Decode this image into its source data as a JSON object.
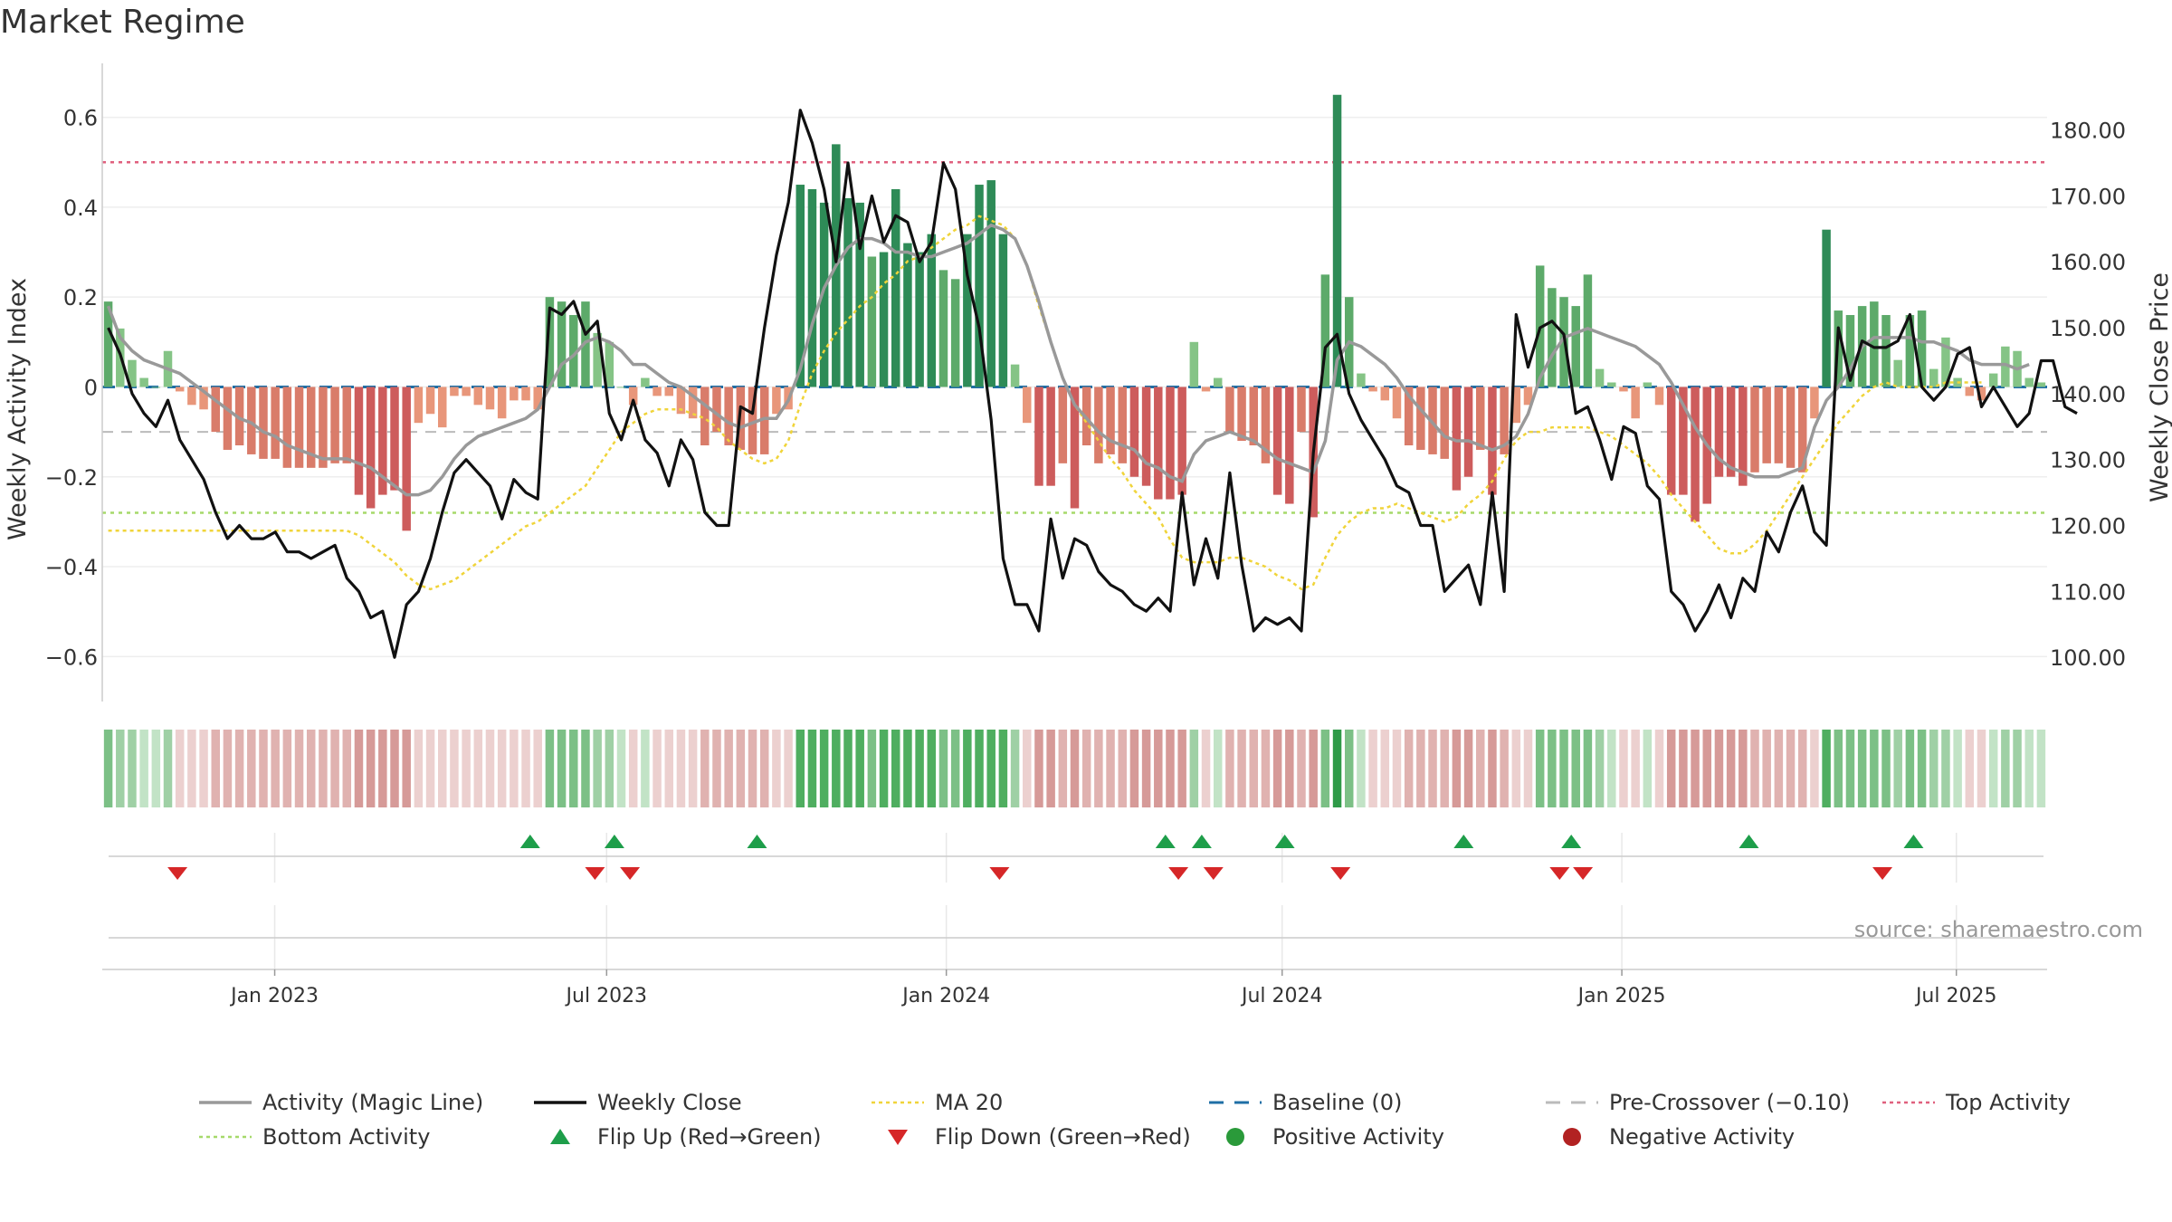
{
  "chart_data": {
    "type": "bar",
    "title": "Market Regime",
    "ylabel": "Weekly Activity Index",
    "y2label": "Weekly Close Price",
    "ylim": [
      -0.7,
      0.72
    ],
    "y2lim": [
      93.3,
      190.1
    ],
    "yticks": [
      0.6,
      0.4,
      0.2,
      0,
      -0.2,
      -0.4,
      -0.6
    ],
    "ytick_labels": [
      "0.6",
      "0.4",
      "0.2",
      "0",
      "−0.2",
      "−0.4",
      "−0.6"
    ],
    "y2ticks": [
      180,
      170,
      160,
      150,
      140,
      130,
      120,
      110,
      100
    ],
    "y2tick_labels": [
      "180.00",
      "170.00",
      "160.00",
      "150.00",
      "140.00",
      "130.00",
      "120.00",
      "110.00",
      "100.00"
    ],
    "x_range_weeks": [
      0,
      150
    ],
    "xticks": [
      {
        "label": "Jan 2023",
        "week": 13.3
      },
      {
        "label": "Jul 2023",
        "week": 38.9
      },
      {
        "label": "Jan 2024",
        "week": 65.1
      },
      {
        "label": "Jul 2024",
        "week": 91.0
      },
      {
        "label": "Jan 2025",
        "week": 117.2
      },
      {
        "label": "Jul 2025",
        "week": 143.0
      }
    ],
    "activity": [
      0.19,
      0.13,
      0.06,
      0.02,
      0.0,
      0.08,
      -0.01,
      -0.04,
      -0.05,
      -0.1,
      -0.14,
      -0.13,
      -0.15,
      -0.16,
      -0.16,
      -0.18,
      -0.18,
      -0.18,
      -0.18,
      -0.17,
      -0.17,
      -0.24,
      -0.27,
      -0.24,
      -0.23,
      -0.32,
      -0.08,
      -0.06,
      -0.09,
      -0.02,
      -0.02,
      -0.04,
      -0.05,
      -0.07,
      -0.03,
      -0.03,
      -0.05,
      0.2,
      0.19,
      0.16,
      0.19,
      0.12,
      0.1,
      0.0,
      -0.04,
      0.02,
      -0.02,
      -0.02,
      -0.06,
      -0.07,
      -0.13,
      -0.1,
      -0.13,
      -0.14,
      -0.15,
      -0.15,
      -0.06,
      -0.05,
      0.45,
      0.44,
      0.41,
      0.54,
      0.42,
      0.41,
      0.29,
      0.3,
      0.44,
      0.32,
      0.3,
      0.34,
      0.26,
      0.24,
      0.34,
      0.45,
      0.46,
      0.34,
      0.05,
      -0.08,
      -0.22,
      -0.22,
      -0.17,
      -0.27,
      -0.13,
      -0.17,
      -0.15,
      -0.17,
      -0.2,
      -0.22,
      -0.25,
      -0.25,
      -0.24,
      0.1,
      -0.01,
      0.02,
      -0.1,
      -0.12,
      -0.13,
      -0.17,
      -0.24,
      -0.26,
      -0.1,
      -0.29,
      0.25,
      0.65,
      0.2,
      0.03,
      -0.01,
      -0.03,
      -0.07,
      -0.13,
      -0.14,
      -0.15,
      -0.16,
      -0.23,
      -0.2,
      -0.14,
      -0.24,
      -0.15,
      -0.08,
      -0.04,
      0.27,
      0.22,
      0.2,
      0.18,
      0.25,
      0.04,
      0.01,
      -0.01,
      -0.07,
      0.01,
      -0.04,
      -0.24,
      -0.24,
      -0.3,
      -0.26,
      -0.2,
      -0.2,
      -0.22,
      -0.19,
      -0.17,
      -0.17,
      -0.18,
      -0.19,
      -0.07,
      0.35,
      0.17,
      0.16,
      0.18,
      0.19,
      0.16,
      0.06,
      0.16,
      0.17,
      0.04,
      0.11,
      0.02,
      -0.02,
      -0.03,
      0.03,
      0.09,
      0.08,
      0.02,
      0.01
    ],
    "magic_line": [
      0.18,
      0.11,
      0.08,
      0.06,
      0.05,
      0.04,
      0.03,
      0.01,
      -0.01,
      -0.03,
      -0.05,
      -0.07,
      -0.08,
      -0.1,
      -0.11,
      -0.13,
      -0.14,
      -0.15,
      -0.16,
      -0.16,
      -0.16,
      -0.17,
      -0.18,
      -0.2,
      -0.22,
      -0.24,
      -0.24,
      -0.23,
      -0.2,
      -0.16,
      -0.13,
      -0.11,
      -0.1,
      -0.09,
      -0.08,
      -0.07,
      -0.05,
      0.0,
      0.05,
      0.07,
      0.1,
      0.11,
      0.1,
      0.08,
      0.05,
      0.05,
      0.03,
      0.01,
      0.0,
      -0.02,
      -0.04,
      -0.06,
      -0.08,
      -0.09,
      -0.08,
      -0.07,
      -0.07,
      -0.03,
      0.04,
      0.14,
      0.22,
      0.27,
      0.31,
      0.33,
      0.33,
      0.32,
      0.3,
      0.3,
      0.29,
      0.29,
      0.3,
      0.31,
      0.32,
      0.34,
      0.36,
      0.35,
      0.33,
      0.27,
      0.19,
      0.1,
      0.02,
      -0.04,
      -0.07,
      -0.1,
      -0.12,
      -0.13,
      -0.14,
      -0.17,
      -0.18,
      -0.2,
      -0.21,
      -0.15,
      -0.12,
      -0.11,
      -0.1,
      -0.11,
      -0.12,
      -0.14,
      -0.16,
      -0.17,
      -0.18,
      -0.19,
      -0.12,
      0.06,
      0.1,
      0.09,
      0.07,
      0.05,
      0.02,
      -0.02,
      -0.05,
      -0.08,
      -0.11,
      -0.12,
      -0.12,
      -0.13,
      -0.14,
      -0.13,
      -0.11,
      -0.06,
      0.02,
      0.07,
      0.11,
      0.12,
      0.13,
      0.12,
      0.11,
      0.1,
      0.09,
      0.07,
      0.05,
      0.01,
      -0.04,
      -0.09,
      -0.13,
      -0.16,
      -0.18,
      -0.19,
      -0.2,
      -0.2,
      -0.2,
      -0.19,
      -0.18,
      -0.09,
      -0.03,
      0.0,
      0.04,
      0.09,
      0.11,
      0.11,
      0.11,
      0.11,
      0.1,
      0.1,
      0.09,
      0.08,
      0.06,
      0.05,
      0.05,
      0.05,
      0.04,
      0.05
    ],
    "weekly_close": [
      150,
      146,
      140,
      137,
      135,
      139,
      133,
      130,
      127,
      122,
      118,
      120,
      118,
      118,
      119,
      116,
      116,
      115,
      116,
      117,
      112,
      110,
      106,
      107,
      100,
      108,
      110,
      115,
      122,
      128,
      130,
      128,
      126,
      121,
      127,
      125,
      124,
      153,
      152,
      154,
      149,
      151,
      137,
      133,
      139,
      133,
      131,
      126,
      133,
      130,
      122,
      120,
      120,
      138,
      137,
      150,
      161,
      169,
      183,
      178,
      171,
      160,
      175,
      162,
      170,
      163,
      167,
      166,
      160,
      163,
      175,
      171,
      158,
      150,
      136,
      115,
      108,
      108,
      104,
      121,
      112,
      118,
      117,
      113,
      111,
      110,
      108,
      107,
      109,
      107,
      125,
      111,
      118,
      112,
      128,
      114,
      104,
      106,
      105,
      106,
      104,
      131,
      147,
      149,
      140,
      136,
      133,
      130,
      126,
      125,
      120,
      120,
      110,
      112,
      114,
      108,
      125,
      110,
      152,
      144,
      150,
      151,
      149,
      137,
      138,
      133,
      127,
      135,
      134,
      126,
      124,
      110,
      108,
      104,
      107,
      111,
      106,
      112,
      110,
      119,
      116,
      122,
      126,
      119,
      117,
      150,
      142,
      148,
      147,
      147,
      148,
      152,
      141,
      139,
      141,
      146,
      147,
      138,
      141,
      138,
      135,
      137,
      145,
      145,
      138,
      137
    ],
    "ma20": [
      -0.32,
      -0.32,
      -0.32,
      -0.32,
      -0.32,
      -0.32,
      -0.32,
      -0.32,
      -0.32,
      -0.32,
      -0.32,
      -0.32,
      -0.32,
      -0.32,
      -0.32,
      -0.32,
      -0.32,
      -0.32,
      -0.32,
      -0.32,
      -0.32,
      -0.33,
      -0.35,
      -0.37,
      -0.39,
      -0.42,
      -0.44,
      -0.45,
      -0.44,
      -0.43,
      -0.41,
      -0.39,
      -0.37,
      -0.35,
      -0.33,
      -0.31,
      -0.3,
      -0.28,
      -0.26,
      -0.24,
      -0.22,
      -0.18,
      -0.14,
      -0.1,
      -0.08,
      -0.06,
      -0.05,
      -0.05,
      -0.05,
      -0.06,
      -0.07,
      -0.09,
      -0.12,
      -0.14,
      -0.16,
      -0.17,
      -0.16,
      -0.12,
      -0.04,
      0.03,
      0.08,
      0.12,
      0.15,
      0.18,
      0.2,
      0.23,
      0.25,
      0.28,
      0.29,
      0.31,
      0.33,
      0.35,
      0.36,
      0.38,
      0.37,
      0.36,
      0.33,
      0.27,
      0.18,
      0.1,
      0.02,
      -0.04,
      -0.08,
      -0.12,
      -0.16,
      -0.19,
      -0.23,
      -0.26,
      -0.29,
      -0.34,
      -0.38,
      -0.39,
      -0.39,
      -0.39,
      -0.38,
      -0.38,
      -0.39,
      -0.4,
      -0.42,
      -0.43,
      -0.45,
      -0.44,
      -0.38,
      -0.33,
      -0.3,
      -0.28,
      -0.27,
      -0.27,
      -0.26,
      -0.27,
      -0.28,
      -0.29,
      -0.3,
      -0.29,
      -0.26,
      -0.24,
      -0.21,
      -0.16,
      -0.12,
      -0.1,
      -0.1,
      -0.09,
      -0.09,
      -0.09,
      -0.09,
      -0.1,
      -0.11,
      -0.13,
      -0.15,
      -0.17,
      -0.2,
      -0.24,
      -0.27,
      -0.3,
      -0.33,
      -0.36,
      -0.37,
      -0.37,
      -0.35,
      -0.32,
      -0.28,
      -0.24,
      -0.2,
      -0.16,
      -0.12,
      -0.08,
      -0.05,
      -0.02,
      0.0,
      0.01,
      0.0,
      0.0,
      0.0,
      0.0,
      0.01,
      0.01,
      0.01,
      0.01
    ],
    "baseline": 0,
    "pre_crossover": -0.1,
    "top_activity": 0.5,
    "bottom_activity": -0.28,
    "flip_up_weeks": [
      33,
      39.5,
      50.5,
      82,
      84.8,
      91.2,
      105,
      113.3,
      127,
      139.7
    ],
    "flip_down_weeks": [
      5.8,
      38,
      40.7,
      69.2,
      83,
      85.7,
      95.5,
      112.4,
      114.2,
      137.3
    ],
    "source_text": "source: sharemaestro.com",
    "legend": [
      {
        "label": "Activity (Magic Line)",
        "style": "line",
        "color": "#999999"
      },
      {
        "label": "Weekly Close",
        "style": "line",
        "color": "#111111"
      },
      {
        "label": "MA 20",
        "style": "dotted",
        "color": "#f0d43a"
      },
      {
        "label": "Baseline (0)",
        "style": "dashed",
        "color": "#1f6fa6"
      },
      {
        "label": "Pre-Crossover (−0.10)",
        "style": "dashed",
        "color": "#bbbbbb"
      },
      {
        "label": "Top Activity",
        "style": "dotted",
        "color": "#e0607e"
      },
      {
        "label": "Bottom Activity",
        "style": "dotted",
        "color": "#a6d96a"
      },
      {
        "label": "Flip Up (Red→Green)",
        "style": "tri-up",
        "color": "#1e9e4a"
      },
      {
        "label": "Flip Down (Green→Red)",
        "style": "tri-down",
        "color": "#d62728"
      },
      {
        "label": "Positive Activity",
        "style": "dot",
        "color": "#2a9a3a"
      },
      {
        "label": "Negative Activity",
        "style": "dot",
        "color": "#b22222"
      }
    ]
  }
}
